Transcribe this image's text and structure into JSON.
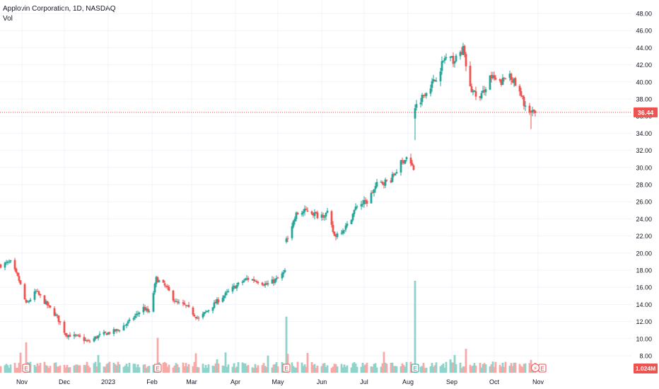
{
  "chart_data": {
    "type": "candlestick",
    "title": "Applovin Corporation, 1D, NASDAQ",
    "volume_label": "Vol",
    "x_labels": [
      "Nov",
      "Dec",
      "2023",
      "Feb",
      "Mar",
      "Apr",
      "May",
      "Jun",
      "Jul",
      "Aug",
      "Sep",
      "Oct",
      "Nov"
    ],
    "y_ticks": [
      "8.00",
      "10.00",
      "12.00",
      "14.00",
      "16.00",
      "18.00",
      "20.00",
      "22.00",
      "24.00",
      "26.00",
      "28.00",
      "30.00",
      "32.00",
      "34.00",
      "36.00",
      "38.00",
      "40.00",
      "42.00",
      "44.00",
      "46.00",
      "48.00"
    ],
    "ylim": [
      6.4,
      49.2
    ],
    "last_price": 36.44,
    "last_price_label": "36.44",
    "volume_last_label": "1.024M",
    "colors": {
      "up": "#26a69a",
      "down": "#ef5350",
      "price_line": "#ef5350",
      "volume_up": "#8fd3cb",
      "volume_down": "#f7a9a7"
    },
    "event_markers": [
      "E",
      "E",
      "E",
      "E",
      "E"
    ],
    "dividend_marker": "⚡",
    "price_path": [
      {
        "d": "2022-10-21",
        "p": 18.6
      },
      {
        "d": "2022-10-28",
        "p": 18.9
      },
      {
        "d": "2022-11-03",
        "p": 16.8
      },
      {
        "d": "2022-11-08",
        "p": 14.0
      },
      {
        "d": "2022-11-15",
        "p": 15.5
      },
      {
        "d": "2022-11-22",
        "p": 14.1
      },
      {
        "d": "2022-11-30",
        "p": 12.5
      },
      {
        "d": "2022-12-06",
        "p": 10.5
      },
      {
        "d": "2022-12-15",
        "p": 10.2
      },
      {
        "d": "2022-12-22",
        "p": 9.6
      },
      {
        "d": "2022-12-30",
        "p": 10.4
      },
      {
        "d": "2023-01-12",
        "p": 11.0
      },
      {
        "d": "2023-01-20",
        "p": 12.0
      },
      {
        "d": "2023-01-30",
        "p": 13.6
      },
      {
        "d": "2023-02-03",
        "p": 13.0
      },
      {
        "d": "2023-02-08",
        "p": 17.0
      },
      {
        "d": "2023-02-15",
        "p": 16.0
      },
      {
        "d": "2023-02-22",
        "p": 14.2
      },
      {
        "d": "2023-03-01",
        "p": 13.8
      },
      {
        "d": "2023-03-10",
        "p": 12.3
      },
      {
        "d": "2023-03-17",
        "p": 13.4
      },
      {
        "d": "2023-03-24",
        "p": 14.5
      },
      {
        "d": "2023-04-04",
        "p": 16.0
      },
      {
        "d": "2023-04-13",
        "p": 17.0
      },
      {
        "d": "2023-04-20",
        "p": 16.8
      },
      {
        "d": "2023-04-27",
        "p": 16.3
      },
      {
        "d": "2023-05-05",
        "p": 17.0
      },
      {
        "d": "2023-05-10",
        "p": 17.8
      },
      {
        "d": "2023-05-11",
        "p": 21.6
      },
      {
        "d": "2023-05-18",
        "p": 24.5
      },
      {
        "d": "2023-05-26",
        "p": 25.0
      },
      {
        "d": "2023-06-02",
        "p": 24.4
      },
      {
        "d": "2023-06-09",
        "p": 24.6
      },
      {
        "d": "2023-06-14",
        "p": 22.0
      },
      {
        "d": "2023-06-23",
        "p": 23.2
      },
      {
        "d": "2023-06-30",
        "p": 25.6
      },
      {
        "d": "2023-07-07",
        "p": 26.0
      },
      {
        "d": "2023-07-14",
        "p": 28.0
      },
      {
        "d": "2023-07-24",
        "p": 28.6
      },
      {
        "d": "2023-07-31",
        "p": 30.5
      },
      {
        "d": "2023-08-04",
        "p": 31.2
      },
      {
        "d": "2023-08-09",
        "p": 29.8
      },
      {
        "d": "2023-08-10",
        "p": 37.0
      },
      {
        "d": "2023-08-17",
        "p": 38.8
      },
      {
        "d": "2023-08-24",
        "p": 40.2
      },
      {
        "d": "2023-08-31",
        "p": 42.8
      },
      {
        "d": "2023-09-07",
        "p": 42.5
      },
      {
        "d": "2023-09-13",
        "p": 43.8
      },
      {
        "d": "2023-09-18",
        "p": 39.2
      },
      {
        "d": "2023-09-25",
        "p": 38.0
      },
      {
        "d": "2023-10-02",
        "p": 40.6
      },
      {
        "d": "2023-10-09",
        "p": 39.8
      },
      {
        "d": "2023-10-16",
        "p": 41.0
      },
      {
        "d": "2023-10-23",
        "p": 38.6
      },
      {
        "d": "2023-10-30",
        "p": 36.2
      },
      {
        "d": "2023-11-03",
        "p": 36.44
      }
    ],
    "volume_spikes": [
      {
        "d": "2022-11-08",
        "v": 0.33
      },
      {
        "d": "2023-02-09",
        "v": 0.38
      },
      {
        "d": "2023-05-11",
        "v": 0.61
      },
      {
        "d": "2023-08-10",
        "v": 1.0
      },
      {
        "d": "2023-09-15",
        "v": 0.26
      },
      {
        "d": "2023-10-31",
        "v": 0.14
      }
    ]
  }
}
